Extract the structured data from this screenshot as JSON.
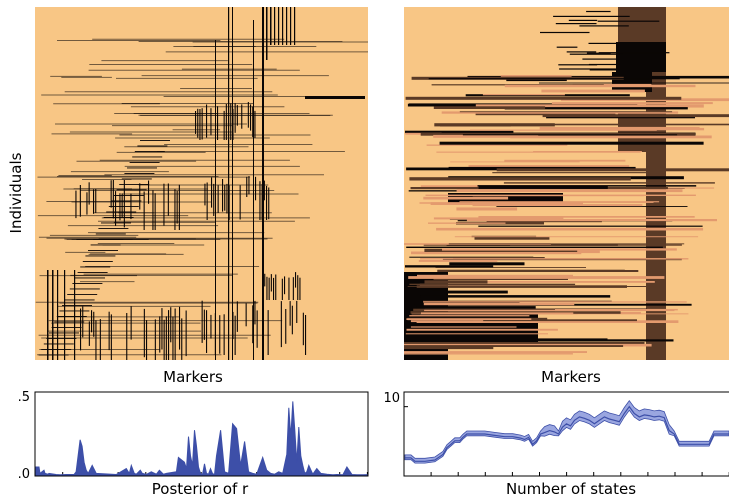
{
  "colors": {
    "background": "#f8c685",
    "dark": "#0a0605",
    "brown": "#5a3a26",
    "salmon": "#e39a6e",
    "line": "#3d4fa8",
    "band": "#9aa6e0"
  },
  "chart_data": [
    {
      "type": "heatmap",
      "title": "",
      "xlabel": "Markers",
      "ylabel": "Individuals",
      "colormap": "binary states shown in dark on light orange background"
    },
    {
      "type": "heatmap",
      "title": "",
      "xlabel": "Markers",
      "ylabel": "",
      "colormap": "multiple states shown in light orange, salmon, brown and black"
    },
    {
      "type": "line",
      "title": "",
      "xlabel": "Posterior of r",
      "ylabel": "",
      "ylim": [
        0,
        0.5
      ],
      "yticks": [
        ".0",
        ".5"
      ],
      "x": [
        0,
        3,
        4,
        8,
        9,
        12,
        13,
        20,
        24,
        30,
        38,
        40,
        42,
        44,
        46,
        48,
        50,
        52,
        56,
        60,
        80,
        90,
        93,
        95,
        98,
        100,
        104,
        106,
        110,
        115,
        120,
        123,
        127,
        130,
        140,
        142,
        148,
        150,
        152,
        154,
        156,
        158,
        160,
        162,
        164,
        166,
        168,
        170,
        172,
        174,
        176,
        178,
        180,
        184,
        188,
        192,
        196,
        200,
        204,
        208,
        212,
        216,
        220,
        226,
        230,
        234,
        238,
        242,
        246,
        250,
        252,
        254,
        256,
        258,
        260,
        262,
        264,
        266,
        268,
        270,
        272,
        276,
        280,
        284,
        290,
        296,
        300,
        306,
        310,
        315,
        320,
        326,
        330
      ],
      "values": [
        0.05,
        0.05,
        0.01,
        0.03,
        0.01,
        0.005,
        0.01,
        0.003,
        0.002,
        0.003,
        0.004,
        0.02,
        0.12,
        0.22,
        0.18,
        0.08,
        0.03,
        0.01,
        0.06,
        0.01,
        0.003,
        0.04,
        0.01,
        0.06,
        0.01,
        0.005,
        0.03,
        0.01,
        0.004,
        0.02,
        0.005,
        0.03,
        0.005,
        0.01,
        0.02,
        0.11,
        0.08,
        0.04,
        0.24,
        0.12,
        0.06,
        0.28,
        0.18,
        0.05,
        0.01,
        0.003,
        0.07,
        0.01,
        0.005,
        0.04,
        0.01,
        0.002,
        0.12,
        0.28,
        0.02,
        0.01,
        0.32,
        0.29,
        0.06,
        0.21,
        0.02,
        0.01,
        0.005,
        0.11,
        0.03,
        0.01,
        0.005,
        0.02,
        0.01,
        0.13,
        0.42,
        0.24,
        0.46,
        0.28,
        0.08,
        0.3,
        0.12,
        0.06,
        0.01,
        0.02,
        0.06,
        0.005,
        0.04,
        0.01,
        0.005,
        0.002,
        0.003,
        0.002,
        0.05,
        0.003,
        0.002,
        0.001,
        0.002
      ]
    },
    {
      "type": "line",
      "title": "",
      "xlabel": "Number of states",
      "ylabel": "",
      "yticks": [
        "10"
      ],
      "ylim": [
        0,
        12
      ],
      "x": [
        0,
        6,
        10,
        20,
        30,
        38,
        42,
        46,
        50,
        55,
        58,
        62,
        66,
        70,
        80,
        90,
        100,
        108,
        112,
        116,
        120,
        124,
        128,
        132,
        136,
        140,
        145,
        150,
        154,
        158,
        162,
        166,
        170,
        175,
        180,
        185,
        190,
        195,
        200,
        205,
        210,
        215,
        220,
        225,
        230,
        235,
        240,
        245,
        250,
        255,
        260,
        265,
        270,
        275,
        280,
        285,
        290,
        295,
        300,
        305,
        310,
        315,
        320,
        325
      ],
      "values": [
        2.5,
        2.5,
        2,
        2,
        2.2,
        3,
        4,
        4.5,
        5,
        5,
        5.5,
        6,
        6,
        6,
        6,
        5.8,
        5.6,
        5.6,
        5.5,
        5.4,
        5.2,
        5.5,
        4.5,
        5,
        6,
        6.2,
        6.5,
        6.3,
        6,
        7,
        7.5,
        7.2,
        8,
        8.5,
        8.3,
        8,
        7.5,
        8,
        8.5,
        8.2,
        8,
        7.8,
        9,
        10,
        9,
        8.5,
        8.8,
        8.7,
        8.5,
        8.6,
        8.4,
        6.5,
        6,
        4.5,
        4.5,
        4.5,
        4.5,
        4.5,
        4.5,
        4.5,
        6,
        6,
        6,
        6
      ]
    }
  ]
}
